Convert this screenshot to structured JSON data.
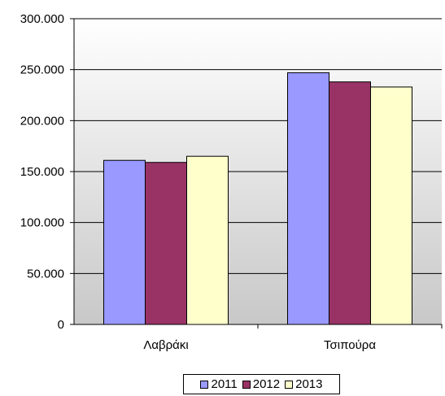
{
  "chart_data": {
    "type": "bar",
    "title": "",
    "xlabel": "",
    "ylabel": "",
    "categories": [
      "Λαβράκι",
      "Τσιπούρα"
    ],
    "series": [
      {
        "name": "2011",
        "values": [
          161000,
          247000
        ],
        "color": "#9999ff"
      },
      {
        "name": "2012",
        "values": [
          159000,
          238000
        ],
        "color": "#993366"
      },
      {
        "name": "2013",
        "values": [
          165000,
          233000
        ],
        "color": "#ffffcc"
      }
    ],
    "ylim": [
      0,
      300000
    ],
    "yticks": [
      0,
      50000,
      100000,
      150000,
      200000,
      250000,
      300000
    ],
    "ytick_labels": [
      "0",
      "50.000",
      "100.000",
      "150.000",
      "200.000",
      "250.000",
      "300.000"
    ],
    "grid": true,
    "legend_position": "bottom"
  }
}
